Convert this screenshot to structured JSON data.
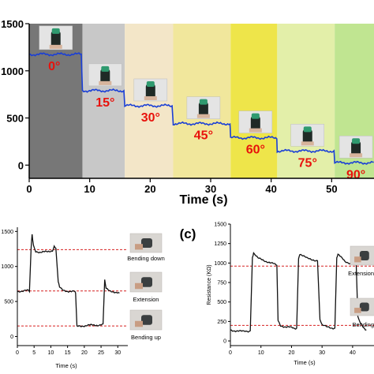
{
  "panel_c_label": "(c)",
  "chart_data": [
    {
      "type": "line",
      "xlabel": "Time (s)",
      "ylabel": "",
      "xlim": [
        0,
        57
      ],
      "ylim": [
        -140,
        1500
      ],
      "xticks": [
        "0",
        "10",
        "20",
        "30",
        "40",
        "50"
      ],
      "yticks": [
        "0",
        "500",
        "1000",
        "1500"
      ],
      "band_colors": [
        "#777777",
        "#c8c8c8",
        "#f3e6c8",
        "#f1e79c",
        "#eee54a",
        "#e3efa9",
        "#c0e591"
      ],
      "angle_labels": [
        "0°",
        "15°",
        "30°",
        "45°",
        "60°",
        "75°",
        "90°"
      ],
      "steps": [
        {
          "x0": 0,
          "x1": 8.8,
          "angle": 0,
          "value": 1175
        },
        {
          "x0": 8.8,
          "x1": 15.8,
          "angle": 15,
          "value": 790
        },
        {
          "x0": 15.8,
          "x1": 23.8,
          "angle": 30,
          "value": 630
        },
        {
          "x0": 23.8,
          "x1": 33.3,
          "angle": 45,
          "value": 440
        },
        {
          "x0": 33.3,
          "x1": 41.0,
          "angle": 60,
          "value": 290
        },
        {
          "x0": 41.0,
          "x1": 50.5,
          "angle": 75,
          "value": 150
        },
        {
          "x0": 50.5,
          "x1": 57,
          "angle": 90,
          "value": 25
        }
      ],
      "line_color": "#1a3fd6"
    },
    {
      "type": "line",
      "xlabel": "Time (s)",
      "ylabel": "",
      "xlim": [
        0,
        33
      ],
      "ylim": [
        -130,
        1560
      ],
      "xticks": [
        "0",
        "5",
        "10",
        "15",
        "20",
        "25",
        "30"
      ],
      "yticks": [
        "0",
        "500",
        "1000",
        "1500"
      ],
      "reference_lines": [
        1240,
        650,
        150
      ],
      "annotations": [
        "Bending down",
        "Extension",
        "Bending up"
      ],
      "series": [
        {
          "values": [
            [
              0,
              640
            ],
            [
              1,
              650
            ],
            [
              2,
              660
            ],
            [
              3,
              660
            ],
            [
              3.6,
              640
            ],
            [
              4.1,
              1250
            ],
            [
              4.4,
              1450
            ],
            [
              4.8,
              1300
            ],
            [
              5.5,
              1220
            ],
            [
              7,
              1200
            ],
            [
              9,
              1210
            ],
            [
              10.5,
              1230
            ],
            [
              11,
              1290
            ],
            [
              11.5,
              1260
            ],
            [
              12.2,
              780
            ],
            [
              12.6,
              700
            ],
            [
              13.5,
              660
            ],
            [
              15,
              650
            ],
            [
              17,
              640
            ],
            [
              17.4,
              620
            ],
            [
              17.8,
              140
            ],
            [
              18.4,
              150
            ],
            [
              20,
              155
            ],
            [
              22,
              160
            ],
            [
              24,
              165
            ],
            [
              25,
              170
            ],
            [
              25.6,
              180
            ],
            [
              26.1,
              800
            ],
            [
              26.5,
              680
            ],
            [
              27.5,
              650
            ],
            [
              29,
              640
            ],
            [
              30.5,
              620
            ]
          ]
        }
      ]
    },
    {
      "type": "line",
      "xlabel": "Time (s)",
      "ylabel": "Resistance (KΩ)",
      "xlim": [
        0,
        47
      ],
      "ylim": [
        -60,
        1500
      ],
      "xticks": [
        "0",
        "10",
        "20",
        "30",
        "40"
      ],
      "yticks": [
        "0",
        "250",
        "500",
        "750",
        "1000",
        "1250",
        "1500"
      ],
      "reference_lines": [
        960,
        200
      ],
      "annotations": [
        "Extension",
        "Bending"
      ],
      "series": [
        {
          "values": [
            [
              0,
              140
            ],
            [
              2,
              130
            ],
            [
              4,
              120
            ],
            [
              5.5,
              125
            ],
            [
              6.5,
              130
            ],
            [
              7.2,
              1080
            ],
            [
              7.6,
              1130
            ],
            [
              9,
              1060
            ],
            [
              12,
              1020
            ],
            [
              14,
              990
            ],
            [
              15.2,
              970
            ],
            [
              15.6,
              260
            ],
            [
              16.4,
              200
            ],
            [
              18,
              180
            ],
            [
              20,
              170
            ],
            [
              21,
              160
            ],
            [
              21.7,
              165
            ],
            [
              22.3,
              1060
            ],
            [
              22.7,
              1120
            ],
            [
              25,
              1060
            ],
            [
              27.5,
              1040
            ],
            [
              28.5,
              1030
            ],
            [
              29.3,
              280
            ],
            [
              30,
              200
            ],
            [
              31.5,
              180
            ],
            [
              33,
              170
            ],
            [
              34.2,
              165
            ],
            [
              34.8,
              1070
            ],
            [
              35.2,
              1110
            ],
            [
              37.5,
              1020
            ],
            [
              40,
              990
            ],
            [
              41.2,
              970
            ],
            [
              41.7,
              300
            ],
            [
              42.5,
              230
            ],
            [
              43.5,
              180
            ],
            [
              44.5,
              140
            ]
          ]
        }
      ]
    }
  ]
}
